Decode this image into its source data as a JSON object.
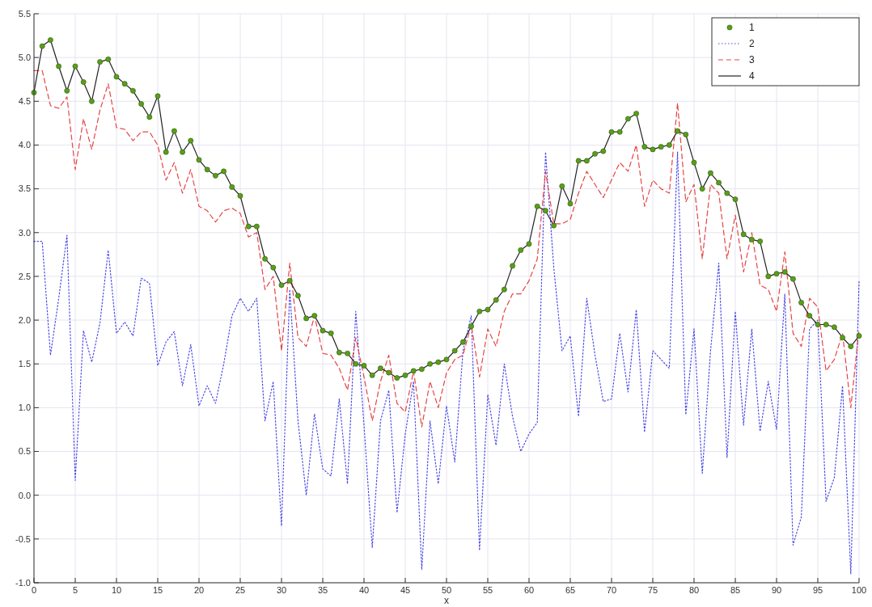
{
  "chart_data": {
    "type": "line",
    "xlabel": "x",
    "xlim": [
      0,
      100
    ],
    "xticks": [
      0,
      5,
      10,
      15,
      20,
      25,
      30,
      35,
      40,
      45,
      50,
      55,
      60,
      65,
      70,
      75,
      80,
      85,
      90,
      95,
      100
    ],
    "ylim": [
      -1,
      5.5
    ],
    "yticks": [
      {
        "value": -1,
        "label": "-1.0"
      },
      {
        "value": -0.5,
        "label": "-0.5"
      },
      {
        "value": 0,
        "label": "0.0"
      },
      {
        "value": 0.5,
        "label": "0.5"
      },
      {
        "value": 1,
        "label": "1.0"
      },
      {
        "value": 1.5,
        "label": "1.5"
      },
      {
        "value": 2,
        "label": "2.0"
      },
      {
        "value": 2.5,
        "label": "2.5"
      },
      {
        "value": 3,
        "label": "3.0"
      },
      {
        "value": 3.5,
        "label": "3.5"
      },
      {
        "value": 4,
        "label": "4.0"
      },
      {
        "value": 4.5,
        "label": "4.5"
      },
      {
        "value": 5,
        "label": "5.0"
      },
      {
        "value": 5.5,
        "label": "5.5"
      }
    ],
    "x": [
      0,
      1,
      2,
      3,
      4,
      5,
      6,
      7,
      8,
      9,
      10,
      11,
      12,
      13,
      14,
      15,
      16,
      17,
      18,
      19,
      20,
      21,
      22,
      23,
      24,
      25,
      26,
      27,
      28,
      29,
      30,
      31,
      32,
      33,
      34,
      35,
      36,
      37,
      38,
      39,
      40,
      41,
      42,
      43,
      44,
      45,
      46,
      47,
      48,
      49,
      50,
      51,
      52,
      53,
      54,
      55,
      56,
      57,
      58,
      59,
      60,
      61,
      62,
      63,
      64,
      65,
      66,
      67,
      68,
      69,
      70,
      71,
      72,
      73,
      74,
      75,
      76,
      77,
      78,
      79,
      80,
      81,
      82,
      83,
      84,
      85,
      86,
      87,
      88,
      89,
      90,
      91,
      92,
      93,
      94,
      95,
      96,
      97,
      98,
      99,
      100
    ],
    "grid": true,
    "legend": "top right",
    "series": [
      {
        "name": "1",
        "type": "scatter",
        "marker": "circle",
        "color": "#5a9e1a",
        "values": [
          4.6,
          5.13,
          5.2,
          4.9,
          4.62,
          4.9,
          4.72,
          4.5,
          4.95,
          4.98,
          4.78,
          4.7,
          4.62,
          4.47,
          4.32,
          4.56,
          3.92,
          4.16,
          3.92,
          4.05,
          3.83,
          3.72,
          3.65,
          3.7,
          3.52,
          3.42,
          3.07,
          3.07,
          2.7,
          2.6,
          2.4,
          2.45,
          2.28,
          2.02,
          2.05,
          1.88,
          1.85,
          1.63,
          1.62,
          1.5,
          1.48,
          1.37,
          1.45,
          1.4,
          1.34,
          1.37,
          1.42,
          1.44,
          1.5,
          1.52,
          1.55,
          1.65,
          1.75,
          1.93,
          2.1,
          2.12,
          2.23,
          2.35,
          2.62,
          2.8,
          2.87,
          3.3,
          3.25,
          3.08,
          3.53,
          3.33,
          3.82,
          3.82,
          3.9,
          3.93,
          4.15,
          4.15,
          4.3,
          4.36,
          3.98,
          3.95,
          3.98,
          4.0,
          4.16,
          4.12,
          3.8,
          3.5,
          3.68,
          3.57,
          3.45,
          3.38,
          2.98,
          2.92,
          2.9,
          2.5,
          2.53,
          2.55,
          2.47,
          2.2,
          2.05,
          1.95,
          1.95,
          1.92,
          1.8,
          1.7,
          1.82
        ]
      },
      {
        "name": "2",
        "line_style": "dotted",
        "color": "#4a4ae6",
        "values": [
          2.9,
          2.9,
          1.6,
          2.25,
          2.97,
          0.17,
          1.88,
          1.52,
          1.97,
          2.8,
          1.85,
          1.98,
          1.82,
          2.48,
          2.42,
          1.48,
          1.75,
          1.87,
          1.25,
          1.72,
          1.02,
          1.25,
          1.05,
          1.5,
          2.05,
          2.25,
          2.1,
          2.25,
          0.85,
          1.3,
          -0.35,
          2.35,
          0.85,
          0.0,
          0.93,
          0.3,
          0.22,
          1.1,
          0.13,
          2.1,
          0.8,
          -0.6,
          0.85,
          1.2,
          -0.2,
          0.7,
          1.3,
          -0.85,
          0.85,
          0.13,
          1.02,
          0.38,
          1.65,
          2.05,
          -0.63,
          1.15,
          0.57,
          1.5,
          0.9,
          0.5,
          0.7,
          0.83,
          3.92,
          2.6,
          1.65,
          1.82,
          0.9,
          2.25,
          1.6,
          1.07,
          1.1,
          1.85,
          1.18,
          2.12,
          0.72,
          1.65,
          1.55,
          1.45,
          3.92,
          0.92,
          1.9,
          0.25,
          1.65,
          2.65,
          0.43,
          2.1,
          0.8,
          1.9,
          0.73,
          1.3,
          0.75,
          2.3,
          -0.57,
          -0.25,
          1.9,
          2.0,
          -0.07,
          0.2,
          1.25,
          -0.9,
          2.45
        ]
      },
      {
        "name": "3",
        "line_style": "dashed",
        "color": "#e84444",
        "values": [
          4.85,
          4.85,
          4.45,
          4.42,
          4.55,
          3.72,
          4.3,
          3.95,
          4.4,
          4.7,
          4.2,
          4.18,
          4.05,
          4.15,
          4.15,
          4.0,
          3.6,
          3.8,
          3.45,
          3.72,
          3.3,
          3.25,
          3.12,
          3.25,
          3.28,
          3.22,
          2.95,
          3.0,
          2.35,
          2.5,
          1.65,
          2.65,
          1.8,
          1.7,
          2.05,
          1.62,
          1.6,
          1.45,
          1.2,
          1.8,
          1.35,
          0.85,
          1.3,
          1.6,
          1.05,
          0.95,
          1.42,
          0.78,
          1.3,
          1.0,
          1.4,
          1.55,
          1.6,
          1.95,
          1.35,
          1.9,
          1.7,
          2.1,
          2.3,
          2.3,
          2.45,
          2.7,
          3.7,
          3.1,
          3.1,
          3.15,
          3.45,
          3.7,
          3.55,
          3.4,
          3.6,
          3.8,
          3.7,
          4.0,
          3.3,
          3.6,
          3.5,
          3.45,
          4.48,
          3.35,
          3.55,
          2.7,
          3.55,
          3.45,
          2.7,
          3.2,
          2.55,
          3.0,
          2.4,
          2.35,
          2.1,
          2.78,
          1.85,
          1.7,
          2.25,
          2.15,
          1.42,
          1.55,
          1.85,
          1.0,
          1.9
        ]
      },
      {
        "name": "4",
        "line_style": "solid",
        "color": "#222222",
        "values": [
          4.6,
          5.13,
          5.2,
          4.9,
          4.62,
          4.9,
          4.72,
          4.5,
          4.95,
          4.98,
          4.78,
          4.7,
          4.62,
          4.47,
          4.32,
          4.56,
          3.92,
          4.16,
          3.92,
          4.05,
          3.83,
          3.72,
          3.65,
          3.7,
          3.52,
          3.42,
          3.07,
          3.07,
          2.7,
          2.6,
          2.4,
          2.45,
          2.28,
          2.02,
          2.05,
          1.88,
          1.85,
          1.63,
          1.62,
          1.5,
          1.48,
          1.37,
          1.45,
          1.4,
          1.34,
          1.37,
          1.42,
          1.44,
          1.5,
          1.52,
          1.55,
          1.65,
          1.75,
          1.93,
          2.1,
          2.12,
          2.23,
          2.35,
          2.62,
          2.8,
          2.87,
          3.3,
          3.25,
          3.08,
          3.53,
          3.33,
          3.82,
          3.82,
          3.9,
          3.93,
          4.15,
          4.15,
          4.3,
          4.36,
          3.98,
          3.95,
          3.98,
          4.0,
          4.16,
          4.12,
          3.8,
          3.5,
          3.68,
          3.57,
          3.45,
          3.38,
          2.98,
          2.92,
          2.9,
          2.5,
          2.53,
          2.55,
          2.47,
          2.2,
          2.05,
          1.95,
          1.95,
          1.92,
          1.8,
          1.7,
          1.82
        ]
      }
    ]
  }
}
